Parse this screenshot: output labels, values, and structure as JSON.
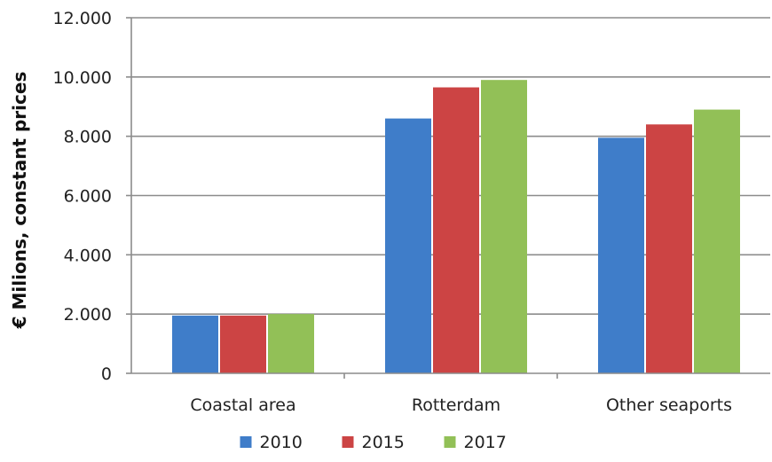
{
  "chart_data": {
    "type": "bar",
    "title": "",
    "xlabel": "",
    "ylabel": "€ Milions, constant prices",
    "categories": [
      "Coastal area",
      "Rotterdam",
      "Other seaports"
    ],
    "series": [
      {
        "name": "2010",
        "color": "#3f7dc9",
        "values": [
          1950,
          8600,
          7950
        ]
      },
      {
        "name": "2015",
        "color": "#cc4444",
        "values": [
          1950,
          9650,
          8400
        ]
      },
      {
        "name": "2017",
        "color": "#92c057",
        "values": [
          2000,
          9900,
          8900
        ]
      }
    ],
    "ylim": [
      0,
      12000
    ],
    "yticks": [
      0,
      2000,
      4000,
      6000,
      8000,
      10000,
      12000
    ],
    "ytick_labels": [
      "0",
      "2.000",
      "4.000",
      "6.000",
      "8.000",
      "10.000",
      "12.000"
    ],
    "grid": true,
    "legend_position": "bottom"
  }
}
